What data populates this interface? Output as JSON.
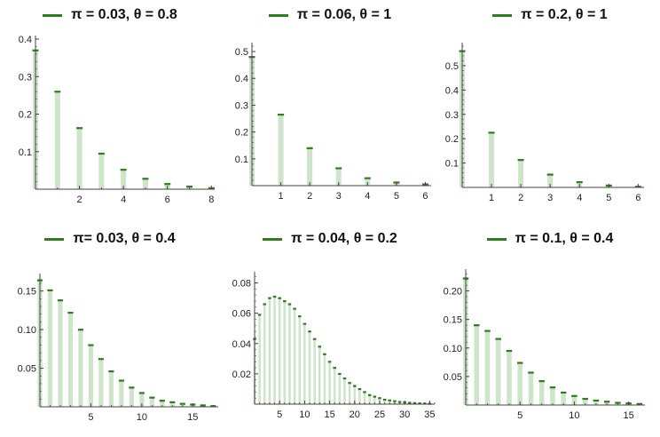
{
  "colors": {
    "bar": "#cfe5cb",
    "cap": "#2e7d1e",
    "axis": "#444444",
    "legend_line": "#2e7d1e"
  },
  "chart_data": [
    {
      "type": "bar",
      "legend": "π = 0.03, θ = 0.8",
      "x": [
        0,
        1,
        2,
        3,
        4,
        5,
        6,
        7,
        8
      ],
      "values": [
        0.37,
        0.26,
        0.163,
        0.095,
        0.052,
        0.028,
        0.014,
        0.007,
        0.003
      ],
      "xticks": [
        2,
        4,
        6,
        8
      ],
      "yticks": [
        0.1,
        0.2,
        0.3,
        0.4
      ],
      "xlim": [
        0,
        8.15
      ],
      "ylim": [
        0,
        0.4
      ]
    },
    {
      "type": "bar",
      "legend": "π = 0.06, θ = 1",
      "x": [
        0,
        1,
        2,
        3,
        4,
        5,
        6
      ],
      "values": [
        0.48,
        0.265,
        0.14,
        0.065,
        0.028,
        0.012,
        0.005
      ],
      "xticks": [
        1,
        2,
        3,
        4,
        5,
        6
      ],
      "yticks": [
        0.1,
        0.2,
        0.3,
        0.4,
        0.5
      ],
      "xlim": [
        0,
        6.2
      ],
      "ylim": [
        0,
        0.52
      ]
    },
    {
      "type": "bar",
      "legend": "π = 0.2, θ = 1",
      "x": [
        0,
        1,
        2,
        3,
        4,
        5,
        6
      ],
      "values": [
        0.56,
        0.225,
        0.113,
        0.053,
        0.022,
        0.008,
        0.003
      ],
      "xticks": [
        1,
        2,
        3,
        4,
        5,
        6
      ],
      "yticks": [
        0.1,
        0.2,
        0.3,
        0.4,
        0.5
      ],
      "xlim": [
        0,
        6.2
      ],
      "ylim": [
        0,
        0.58
      ]
    },
    {
      "type": "bar",
      "legend": "π= 0.03, θ = 0.4",
      "x": [
        0,
        1,
        2,
        3,
        4,
        5,
        6,
        7,
        8,
        9,
        10,
        11,
        12,
        13,
        14,
        15,
        16,
        17
      ],
      "values": [
        0.164,
        0.151,
        0.138,
        0.122,
        0.1,
        0.08,
        0.062,
        0.046,
        0.034,
        0.025,
        0.018,
        0.012,
        0.008,
        0.006,
        0.004,
        0.003,
        0.002,
        0.001
      ],
      "xticks": [
        5,
        10,
        15
      ],
      "yticks": [
        0.05,
        0.1,
        0.15
      ],
      "ytick_labels": [
        "0.05",
        "0.10",
        "0.15"
      ],
      "xlim": [
        0,
        17.5
      ],
      "ylim": [
        0,
        0.168
      ]
    },
    {
      "type": "bar",
      "legend": "π = 0.04, θ = 0.2",
      "x": [
        0,
        1,
        2,
        3,
        4,
        5,
        6,
        7,
        8,
        9,
        10,
        11,
        12,
        13,
        14,
        15,
        16,
        17,
        18,
        19,
        20,
        21,
        22,
        23,
        24,
        25,
        26,
        27,
        28,
        29,
        30,
        31,
        32,
        33,
        34,
        35
      ],
      "values": [
        0.043,
        0.059,
        0.066,
        0.07,
        0.071,
        0.07,
        0.068,
        0.066,
        0.063,
        0.058,
        0.053,
        0.048,
        0.043,
        0.038,
        0.033,
        0.028,
        0.024,
        0.02,
        0.017,
        0.014,
        0.012,
        0.01,
        0.008,
        0.006,
        0.005,
        0.004,
        0.003,
        0.0025,
        0.002,
        0.0015,
        0.0012,
        0.0009,
        0.0007,
        0.0005,
        0.0004,
        0.0003
      ],
      "xticks": [
        5,
        10,
        15,
        20,
        25,
        30,
        35
      ],
      "yticks": [
        0.02,
        0.04,
        0.06,
        0.08
      ],
      "xlim": [
        0,
        36
      ],
      "ylim": [
        0,
        0.085
      ]
    },
    {
      "type": "bar",
      "legend": "π = 0.1, θ = 0.4",
      "x": [
        0,
        1,
        2,
        3,
        4,
        5,
        6,
        7,
        8,
        9,
        10,
        11,
        12,
        13,
        14,
        15,
        16
      ],
      "values": [
        0.222,
        0.14,
        0.13,
        0.116,
        0.095,
        0.074,
        0.057,
        0.042,
        0.031,
        0.022,
        0.016,
        0.011,
        0.008,
        0.006,
        0.004,
        0.003,
        0.002
      ],
      "xticks": [
        5,
        10,
        15
      ],
      "yticks": [
        0.05,
        0.1,
        0.15,
        0.2
      ],
      "ytick_labels": [
        "0.05",
        "0.10",
        "0.15",
        "0.20"
      ],
      "xlim": [
        0,
        16.5
      ],
      "ylim": [
        0,
        0.232
      ]
    }
  ]
}
